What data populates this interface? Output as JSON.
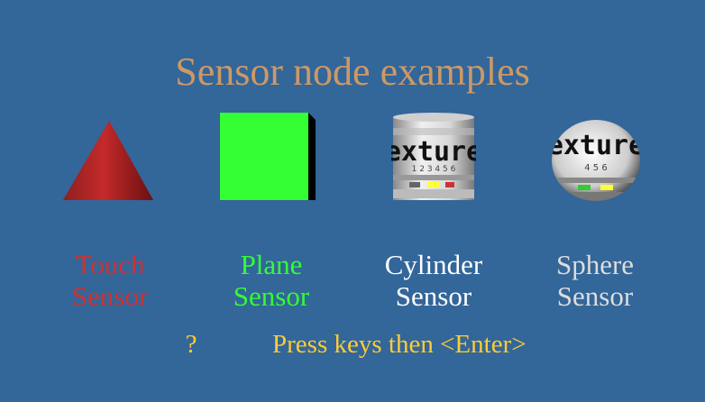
{
  "title": "Sensor node examples",
  "texture_text": "exture",
  "examples": [
    {
      "line1": "Touch",
      "line2": "Sensor",
      "color": "#cc3333",
      "shape": "red-cone"
    },
    {
      "line1": "Plane",
      "line2": "Sensor",
      "color": "#33ff33",
      "shape": "green-box"
    },
    {
      "line1": "Cylinder",
      "line2": "Sensor",
      "color": "#ffffff",
      "shape": "textured-cylinder"
    },
    {
      "line1": "Sphere",
      "line2": "Sensor",
      "color": "#dddddd",
      "shape": "textured-sphere"
    }
  ],
  "prompt": {
    "symbol": "?",
    "text": "Press keys then <Enter>",
    "color": "#ffcc33"
  }
}
